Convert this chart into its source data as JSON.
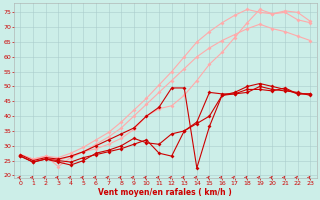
{
  "xlabel": "Vent moyen/en rafales ( km/h )",
  "background_color": "#cceee8",
  "grid_color": "#aacccc",
  "xlim": [
    -0.5,
    23.5
  ],
  "ylim": [
    19,
    78
  ],
  "yticks": [
    20,
    25,
    30,
    35,
    40,
    45,
    50,
    55,
    60,
    65,
    70,
    75
  ],
  "xticks": [
    0,
    1,
    2,
    3,
    4,
    5,
    6,
    7,
    8,
    9,
    10,
    11,
    12,
    13,
    14,
    15,
    16,
    17,
    18,
    19,
    20,
    21,
    22,
    23
  ],
  "lines_dark": [
    [
      26.5,
      24.5,
      25.5,
      25.0,
      24.5,
      26.0,
      27.0,
      28.0,
      29.0,
      30.5,
      32.0,
      27.5,
      26.5,
      35.0,
      37.5,
      40.0,
      47.0,
      47.5,
      49.0,
      49.0,
      48.5,
      49.5,
      47.5,
      47.5
    ],
    [
      26.5,
      24.5,
      25.5,
      24.5,
      23.5,
      25.0,
      27.5,
      28.5,
      30.0,
      32.5,
      31.0,
      30.5,
      34.0,
      35.0,
      38.0,
      48.0,
      47.5,
      47.5,
      48.0,
      50.0,
      49.0,
      48.5,
      48.0,
      47.0
    ],
    [
      27.0,
      25.0,
      26.0,
      25.5,
      26.5,
      28.0,
      30.0,
      32.0,
      34.0,
      36.0,
      40.0,
      43.0,
      49.5,
      49.5,
      22.5,
      36.5,
      47.0,
      48.0,
      50.0,
      51.0,
      50.0,
      49.0,
      47.5,
      47.5
    ]
  ],
  "lines_light": [
    [
      27.0,
      25.5,
      26.5,
      26.0,
      27.5,
      29.5,
      32.0,
      34.5,
      38.0,
      42.0,
      46.0,
      50.5,
      55.0,
      60.0,
      65.0,
      68.5,
      71.5,
      74.0,
      76.0,
      75.0,
      74.5,
      75.0,
      72.5,
      71.5
    ],
    [
      27.0,
      25.5,
      26.5,
      23.0,
      26.0,
      28.0,
      29.0,
      30.5,
      32.5,
      35.5,
      40.0,
      42.5,
      43.5,
      47.0,
      52.0,
      57.5,
      61.5,
      66.5,
      71.5,
      76.0,
      74.5,
      75.5,
      75.0,
      72.0
    ],
    [
      27.0,
      25.5,
      26.0,
      25.0,
      26.5,
      28.0,
      30.5,
      33.0,
      36.0,
      40.0,
      44.0,
      48.0,
      52.0,
      56.0,
      60.0,
      63.0,
      65.5,
      67.5,
      69.5,
      71.0,
      69.5,
      68.5,
      67.0,
      65.5
    ]
  ],
  "color_dark": "#cc0000",
  "color_light": "#ffaaaa",
  "marker_symbol": "D",
  "marker_size": 2.0,
  "linewidth": 0.8
}
